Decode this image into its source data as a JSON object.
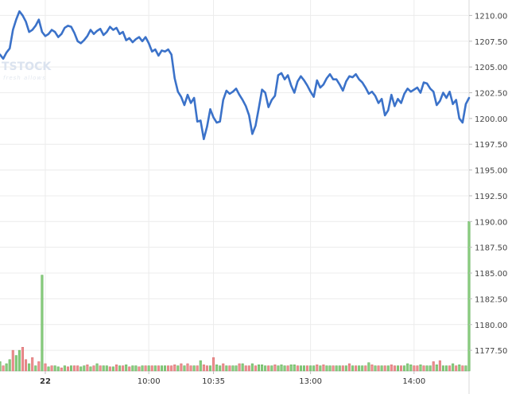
{
  "watermark": {
    "brand": "TSTOCK",
    "tagline": "fresh allows"
  },
  "chart_data": {
    "type": "line",
    "title": "",
    "xlabel": "",
    "ylabel": "",
    "ylim": [
      1175.5,
      1211.5
    ],
    "xlim": [
      0,
      145
    ],
    "grid": true,
    "y_ticks": [
      1177.5,
      1180.0,
      1182.5,
      1185.0,
      1187.5,
      1190.0,
      1192.5,
      1195.0,
      1197.5,
      1200.0,
      1202.5,
      1205.0,
      1207.5,
      1210.0
    ],
    "y_tick_labels": [
      "1177.50",
      "1180.00",
      "1182.50",
      "1185.00",
      "1187.50",
      "1190.00",
      "1192.50",
      "1195.00",
      "1197.50",
      "1200.00",
      "1202.50",
      "1205.00",
      "1207.50",
      "1210.00"
    ],
    "x_ticks": [
      {
        "x": 14,
        "label": "22"
      },
      {
        "x": 46,
        "label": "10:00"
      },
      {
        "x": 66,
        "label": "10:35"
      },
      {
        "x": 96,
        "label": "13:00"
      },
      {
        "x": 128,
        "label": "14:00"
      }
    ],
    "series": [
      {
        "type": "line",
        "color": "#3b72c9",
        "x": [
          0,
          1,
          2,
          3,
          4,
          5,
          6,
          7,
          8,
          9,
          10,
          11,
          12,
          13,
          14,
          15,
          16,
          17,
          18,
          19,
          20,
          21,
          22,
          23,
          24,
          25,
          26,
          27,
          28,
          29,
          30,
          31,
          32,
          33,
          34,
          35,
          36,
          37,
          38,
          39,
          40,
          41,
          42,
          43,
          44,
          45,
          46,
          47,
          48,
          49,
          50,
          51,
          52,
          53,
          54,
          55,
          56,
          57,
          58,
          59,
          60,
          61,
          62,
          63,
          64,
          65,
          66,
          67,
          68,
          69,
          70,
          71,
          72,
          73,
          74,
          75,
          76,
          77,
          78,
          79,
          80,
          81,
          82,
          83,
          84,
          85,
          86,
          87,
          88,
          89,
          90,
          91,
          92,
          93,
          94,
          95,
          96,
          97,
          98,
          99,
          100,
          101,
          102,
          103,
          104,
          105,
          106,
          107,
          108,
          109,
          110,
          111,
          112,
          113,
          114,
          115,
          116,
          117,
          118,
          119,
          120,
          121,
          122,
          123,
          124,
          125,
          126,
          127,
          128,
          129,
          130,
          131,
          132,
          133,
          134,
          135,
          136,
          137,
          138,
          139,
          140,
          141,
          142,
          143,
          144,
          145
        ],
        "values": [
          1206.2,
          1205.8,
          1206.4,
          1206.8,
          1208.6,
          1209.6,
          1210.4,
          1210.0,
          1209.4,
          1208.4,
          1208.6,
          1209.0,
          1209.6,
          1208.4,
          1208.0,
          1208.2,
          1208.6,
          1208.4,
          1207.9,
          1208.2,
          1208.8,
          1209.0,
          1208.9,
          1208.3,
          1207.5,
          1207.3,
          1207.6,
          1208.0,
          1208.6,
          1208.2,
          1208.5,
          1208.7,
          1208.1,
          1208.4,
          1208.9,
          1208.6,
          1208.8,
          1208.2,
          1208.4,
          1207.6,
          1207.8,
          1207.4,
          1207.7,
          1207.9,
          1207.5,
          1207.9,
          1207.3,
          1206.5,
          1206.7,
          1206.1,
          1206.6,
          1206.5,
          1206.7,
          1206.2,
          1203.9,
          1202.6,
          1202.1,
          1201.3,
          1202.3,
          1201.5,
          1202.0,
          1199.7,
          1199.8,
          1198.0,
          1199.2,
          1200.9,
          1200.1,
          1199.6,
          1199.7,
          1201.8,
          1202.7,
          1202.4,
          1202.6,
          1202.9,
          1202.3,
          1201.8,
          1201.2,
          1200.3,
          1198.5,
          1199.3,
          1201.0,
          1202.8,
          1202.5,
          1201.1,
          1201.8,
          1202.2,
          1204.2,
          1204.4,
          1203.8,
          1204.2,
          1203.2,
          1202.5,
          1203.6,
          1204.1,
          1203.7,
          1203.2,
          1202.6,
          1202.1,
          1203.7,
          1203.0,
          1203.3,
          1203.9,
          1204.3,
          1203.8,
          1203.8,
          1203.3,
          1202.7,
          1203.6,
          1204.1,
          1204.0,
          1204.3,
          1203.8,
          1203.5,
          1203.0,
          1202.4,
          1202.6,
          1202.2,
          1201.5,
          1201.9,
          1200.3,
          1200.8,
          1202.3,
          1201.2,
          1201.9,
          1201.5,
          1202.4,
          1202.9,
          1202.6,
          1202.8,
          1203.0,
          1202.5,
          1203.5,
          1203.4,
          1202.9,
          1202.6,
          1201.3,
          1201.7,
          1202.5,
          1202.0,
          1202.6,
          1201.4,
          1201.8,
          1200.0,
          1199.6,
          1201.4,
          1202.0
        ]
      },
      {
        "type": "volume",
        "colors": {
          "up": "#88cc7e",
          "down": "#ee8f90"
        },
        "x": [
          0,
          1,
          2,
          3,
          4,
          5,
          6,
          7,
          8,
          9,
          10,
          11,
          12,
          13,
          14,
          15,
          16,
          17,
          18,
          19,
          20,
          21,
          22,
          23,
          24,
          25,
          26,
          27,
          28,
          29,
          30,
          31,
          32,
          33,
          34,
          35,
          36,
          37,
          38,
          39,
          40,
          41,
          42,
          43,
          44,
          45,
          46,
          47,
          48,
          49,
          50,
          51,
          52,
          53,
          54,
          55,
          56,
          57,
          58,
          59,
          60,
          61,
          62,
          63,
          64,
          65,
          66,
          67,
          68,
          69,
          70,
          71,
          72,
          73,
          74,
          75,
          76,
          77,
          78,
          79,
          80,
          81,
          82,
          83,
          84,
          85,
          86,
          87,
          88,
          89,
          90,
          91,
          92,
          93,
          94,
          95,
          96,
          97,
          98,
          99,
          100,
          101,
          102,
          103,
          104,
          105,
          106,
          107,
          108,
          109,
          110,
          111,
          112,
          113,
          114,
          115,
          116,
          117,
          118,
          119,
          120,
          121,
          122,
          123,
          124,
          125,
          126,
          127,
          128,
          129,
          130,
          131,
          132,
          133,
          134,
          135,
          136,
          137,
          138,
          139,
          140,
          141,
          142,
          143,
          144,
          145
        ],
        "values": [
          1176.4,
          1176.0,
          1176.2,
          1176.6,
          1177.5,
          1177.0,
          1177.5,
          1177.8,
          1176.6,
          1176.2,
          1176.8,
          1176.0,
          1176.4,
          1184.8,
          1176.2,
          1175.9,
          1176.0,
          1176.0,
          1175.9,
          1175.8,
          1176.0,
          1175.9,
          1176.0,
          1176.0,
          1176.0,
          1175.9,
          1176.0,
          1176.1,
          1175.9,
          1176.0,
          1176.2,
          1176.0,
          1176.0,
          1176.0,
          1175.9,
          1175.9,
          1176.1,
          1176.0,
          1176.0,
          1176.1,
          1175.9,
          1176.0,
          1176.0,
          1175.9,
          1176.0,
          1176.0,
          1176.0,
          1176.0,
          1176.0,
          1176.0,
          1176.0,
          1176.0,
          1176.0,
          1176.0,
          1176.1,
          1176.0,
          1176.2,
          1176.0,
          1176.2,
          1176.0,
          1176.0,
          1176.0,
          1176.5,
          1176.1,
          1176.0,
          1176.0,
          1176.8,
          1176.1,
          1176.0,
          1176.2,
          1176.0,
          1176.0,
          1176.0,
          1176.0,
          1176.2,
          1176.2,
          1176.0,
          1176.0,
          1176.2,
          1176.0,
          1176.1,
          1176.1,
          1176.0,
          1176.0,
          1176.0,
          1176.1,
          1176.0,
          1176.1,
          1176.0,
          1176.0,
          1176.1,
          1176.1,
          1176.0,
          1176.0,
          1176.0,
          1176.0,
          1176.0,
          1176.0,
          1176.1,
          1176.0,
          1176.1,
          1176.0,
          1176.0,
          1176.0,
          1176.0,
          1176.0,
          1176.0,
          1176.0,
          1176.2,
          1176.0,
          1176.0,
          1176.0,
          1176.0,
          1176.0,
          1176.3,
          1176.1,
          1176.0,
          1176.0,
          1176.0,
          1176.0,
          1176.0,
          1176.1,
          1176.0,
          1176.0,
          1176.0,
          1176.0,
          1176.2,
          1176.1,
          1176.0,
          1176.0,
          1176.1,
          1176.0,
          1176.0,
          1176.0,
          1176.4,
          1176.1,
          1176.5,
          1176.0,
          1176.0,
          1176.0,
          1176.2,
          1176.0,
          1176.1,
          1176.0,
          1176.0,
          1190.0
        ],
        "up": [
          1,
          0,
          1,
          1,
          0,
          1,
          1,
          0,
          0,
          1,
          0,
          1,
          0,
          1,
          0,
          1,
          0,
          1,
          1,
          0,
          1,
          0,
          1,
          0,
          0,
          1,
          1,
          0,
          1,
          0,
          1,
          0,
          1,
          1,
          0,
          1,
          0,
          1,
          0,
          1,
          0,
          1,
          1,
          0,
          1,
          0,
          1,
          0,
          1,
          0,
          1,
          1,
          0,
          0,
          0,
          1,
          0,
          1,
          0,
          0,
          1,
          0,
          1,
          0,
          0,
          1,
          0,
          1,
          1,
          0,
          1,
          0,
          1,
          1,
          0,
          1,
          0,
          0,
          1,
          0,
          1,
          1,
          1,
          0,
          1,
          0,
          1,
          1,
          1,
          0,
          1,
          1,
          0,
          1,
          1,
          0,
          1,
          1,
          0,
          1,
          0,
          1,
          1,
          0,
          1,
          1,
          0,
          1,
          0,
          1,
          0,
          1,
          1,
          0,
          1,
          0,
          1,
          0,
          1,
          0,
          1,
          0,
          0,
          1,
          0,
          1,
          1,
          1,
          0,
          0,
          1,
          0,
          1,
          1,
          0,
          1,
          0,
          1,
          1,
          0,
          1,
          0,
          1,
          0,
          1,
          1
        ]
      }
    ]
  }
}
